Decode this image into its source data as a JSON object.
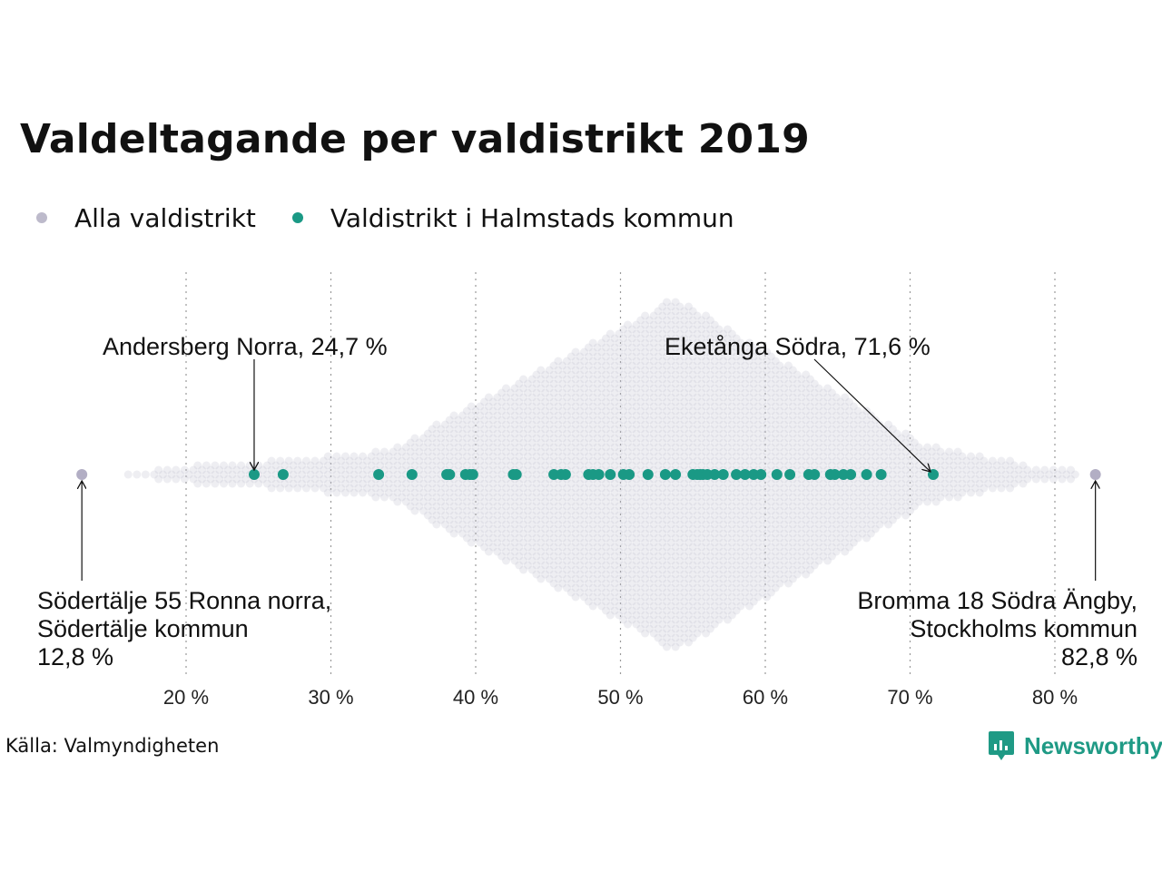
{
  "title": "Valdeltagande per valdistrikt 2019",
  "legend": [
    {
      "label": "Alla valdistrikt",
      "color": "#bdbacb"
    },
    {
      "label": "Valdistrikt i Halmstads kommun",
      "color": "#1a9985"
    }
  ],
  "source": "Källa: Valmyndigheten",
  "brand": {
    "name": "Newsworthy",
    "icon": "newsworthy-logo-icon",
    "color": "#1f9a85"
  },
  "chart_data": {
    "type": "scatter",
    "subtype": "beeswarm",
    "x_ticks": [
      20,
      30,
      40,
      50,
      60,
      70,
      80
    ],
    "x_tick_labels": [
      "20 %",
      "30 %",
      "40 %",
      "50 %",
      "60 %",
      "70 %",
      "80 %"
    ],
    "xlim": [
      10,
      85
    ],
    "grid": "vertical dotted",
    "legend_placement": "top-left",
    "series": [
      {
        "name": "Alla valdistrikt",
        "color": "#bdbacb",
        "distribution": {
          "min": 12.8,
          "max": 82.8,
          "peak": 53.8
        }
      },
      {
        "name": "Valdistrikt i Halmstads kommun",
        "color": "#1a9985",
        "values": [
          24.7,
          26.7,
          33.3,
          35.6,
          38.0,
          38.2,
          39.3,
          39.6,
          39.8,
          42.6,
          42.8,
          45.4,
          45.9,
          46.2,
          47.8,
          48.1,
          48.5,
          49.3,
          50.2,
          50.6,
          51.9,
          53.1,
          53.8,
          55.0,
          55.3,
          55.5,
          55.7,
          56.0,
          56.5,
          57.1,
          58.0,
          58.6,
          59.2,
          59.7,
          60.8,
          61.7,
          63.0,
          63.4,
          64.5,
          64.8,
          65.4,
          65.9,
          67.0,
          68.0,
          71.6
        ]
      }
    ],
    "annotations": [
      {
        "lines": [
          "Andersberg Norra, 24,7 %"
        ],
        "value": 24.7
      },
      {
        "lines": [
          "Eketånga Södra, 71,6 %"
        ],
        "value": 71.6
      },
      {
        "lines": [
          "Södertälje 55 Ronna norra,",
          "Södertälje kommun",
          "12,8 %"
        ],
        "value": 12.8
      },
      {
        "lines": [
          "Bromma 18 Södra Ängby,",
          "Stockholms kommun",
          "82,8 %"
        ],
        "value": 82.8
      }
    ]
  }
}
